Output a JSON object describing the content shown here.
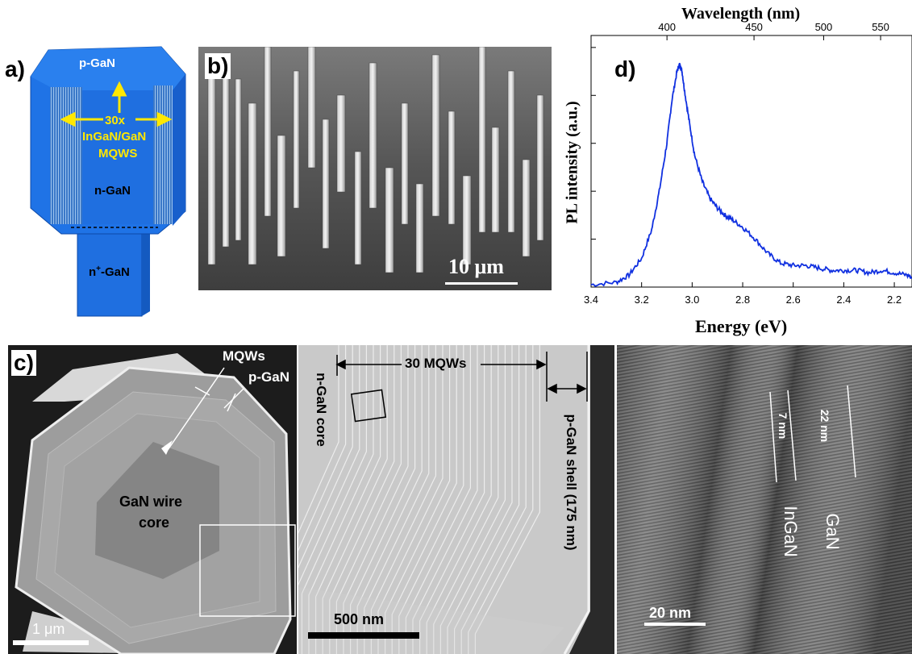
{
  "panel_a": {
    "label": "a)",
    "top": "p-GaN",
    "mqw_count": "30x",
    "mqw_material": "InGaN/GaN",
    "mqw_abbrev": "MQWS",
    "core": "n-GaN",
    "base_prefix": "n",
    "base_sup": "+",
    "base_suffix": "-GaN"
  },
  "panel_b": {
    "label": "b)",
    "scale": "10 μm"
  },
  "panel_c": {
    "label": "c)",
    "mqws": "MQWs",
    "pgan": "p-GaN",
    "core_line1": "GaN wire",
    "core_line2": "core",
    "scale": "1 μm"
  },
  "panel_c2": {
    "ngan_core": "n-GaN core",
    "mqws": "30 MQWs",
    "pgan_shell": "p-GaN shell (175 nm)",
    "scale": "500 nm"
  },
  "panel_c3": {
    "d1": "7 nm",
    "d2": "22 nm",
    "ingan": "InGaN",
    "gan": "GaN",
    "scale": "20 nm"
  },
  "panel_d": {
    "label": "d)"
  },
  "chart_data": {
    "type": "line",
    "xlabel": "Energy (eV)",
    "ylabel": "PL intensity (a.u.)",
    "x2label": "Wavelength (nm)",
    "xlim": [
      3.4,
      2.13
    ],
    "x_ticks": [
      "3.4",
      "3.2",
      "3.0",
      "2.8",
      "2.6",
      "2.4",
      "2.2"
    ],
    "x2_ticks": [
      "400",
      "450",
      "500",
      "550"
    ],
    "ylim": [
      0,
      1.05
    ],
    "series": [
      {
        "color": "#1030e0",
        "x": [
          3.4,
          3.3,
          3.25,
          3.2,
          3.16,
          3.13,
          3.1,
          3.08,
          3.06,
          3.05,
          3.04,
          3.03,
          3.01,
          2.99,
          2.96,
          2.93,
          2.9,
          2.87,
          2.84,
          2.8,
          2.75,
          2.7,
          2.65,
          2.6,
          2.55,
          2.5,
          2.45,
          2.4,
          2.35,
          2.3,
          2.25,
          2.2,
          2.15,
          2.13
        ],
        "y": [
          0.01,
          0.02,
          0.05,
          0.12,
          0.24,
          0.4,
          0.6,
          0.78,
          0.9,
          0.93,
          0.9,
          0.82,
          0.68,
          0.55,
          0.44,
          0.37,
          0.33,
          0.3,
          0.28,
          0.25,
          0.2,
          0.14,
          0.1,
          0.09,
          0.09,
          0.08,
          0.07,
          0.07,
          0.07,
          0.06,
          0.07,
          0.06,
          0.05,
          0.04
        ]
      }
    ]
  }
}
